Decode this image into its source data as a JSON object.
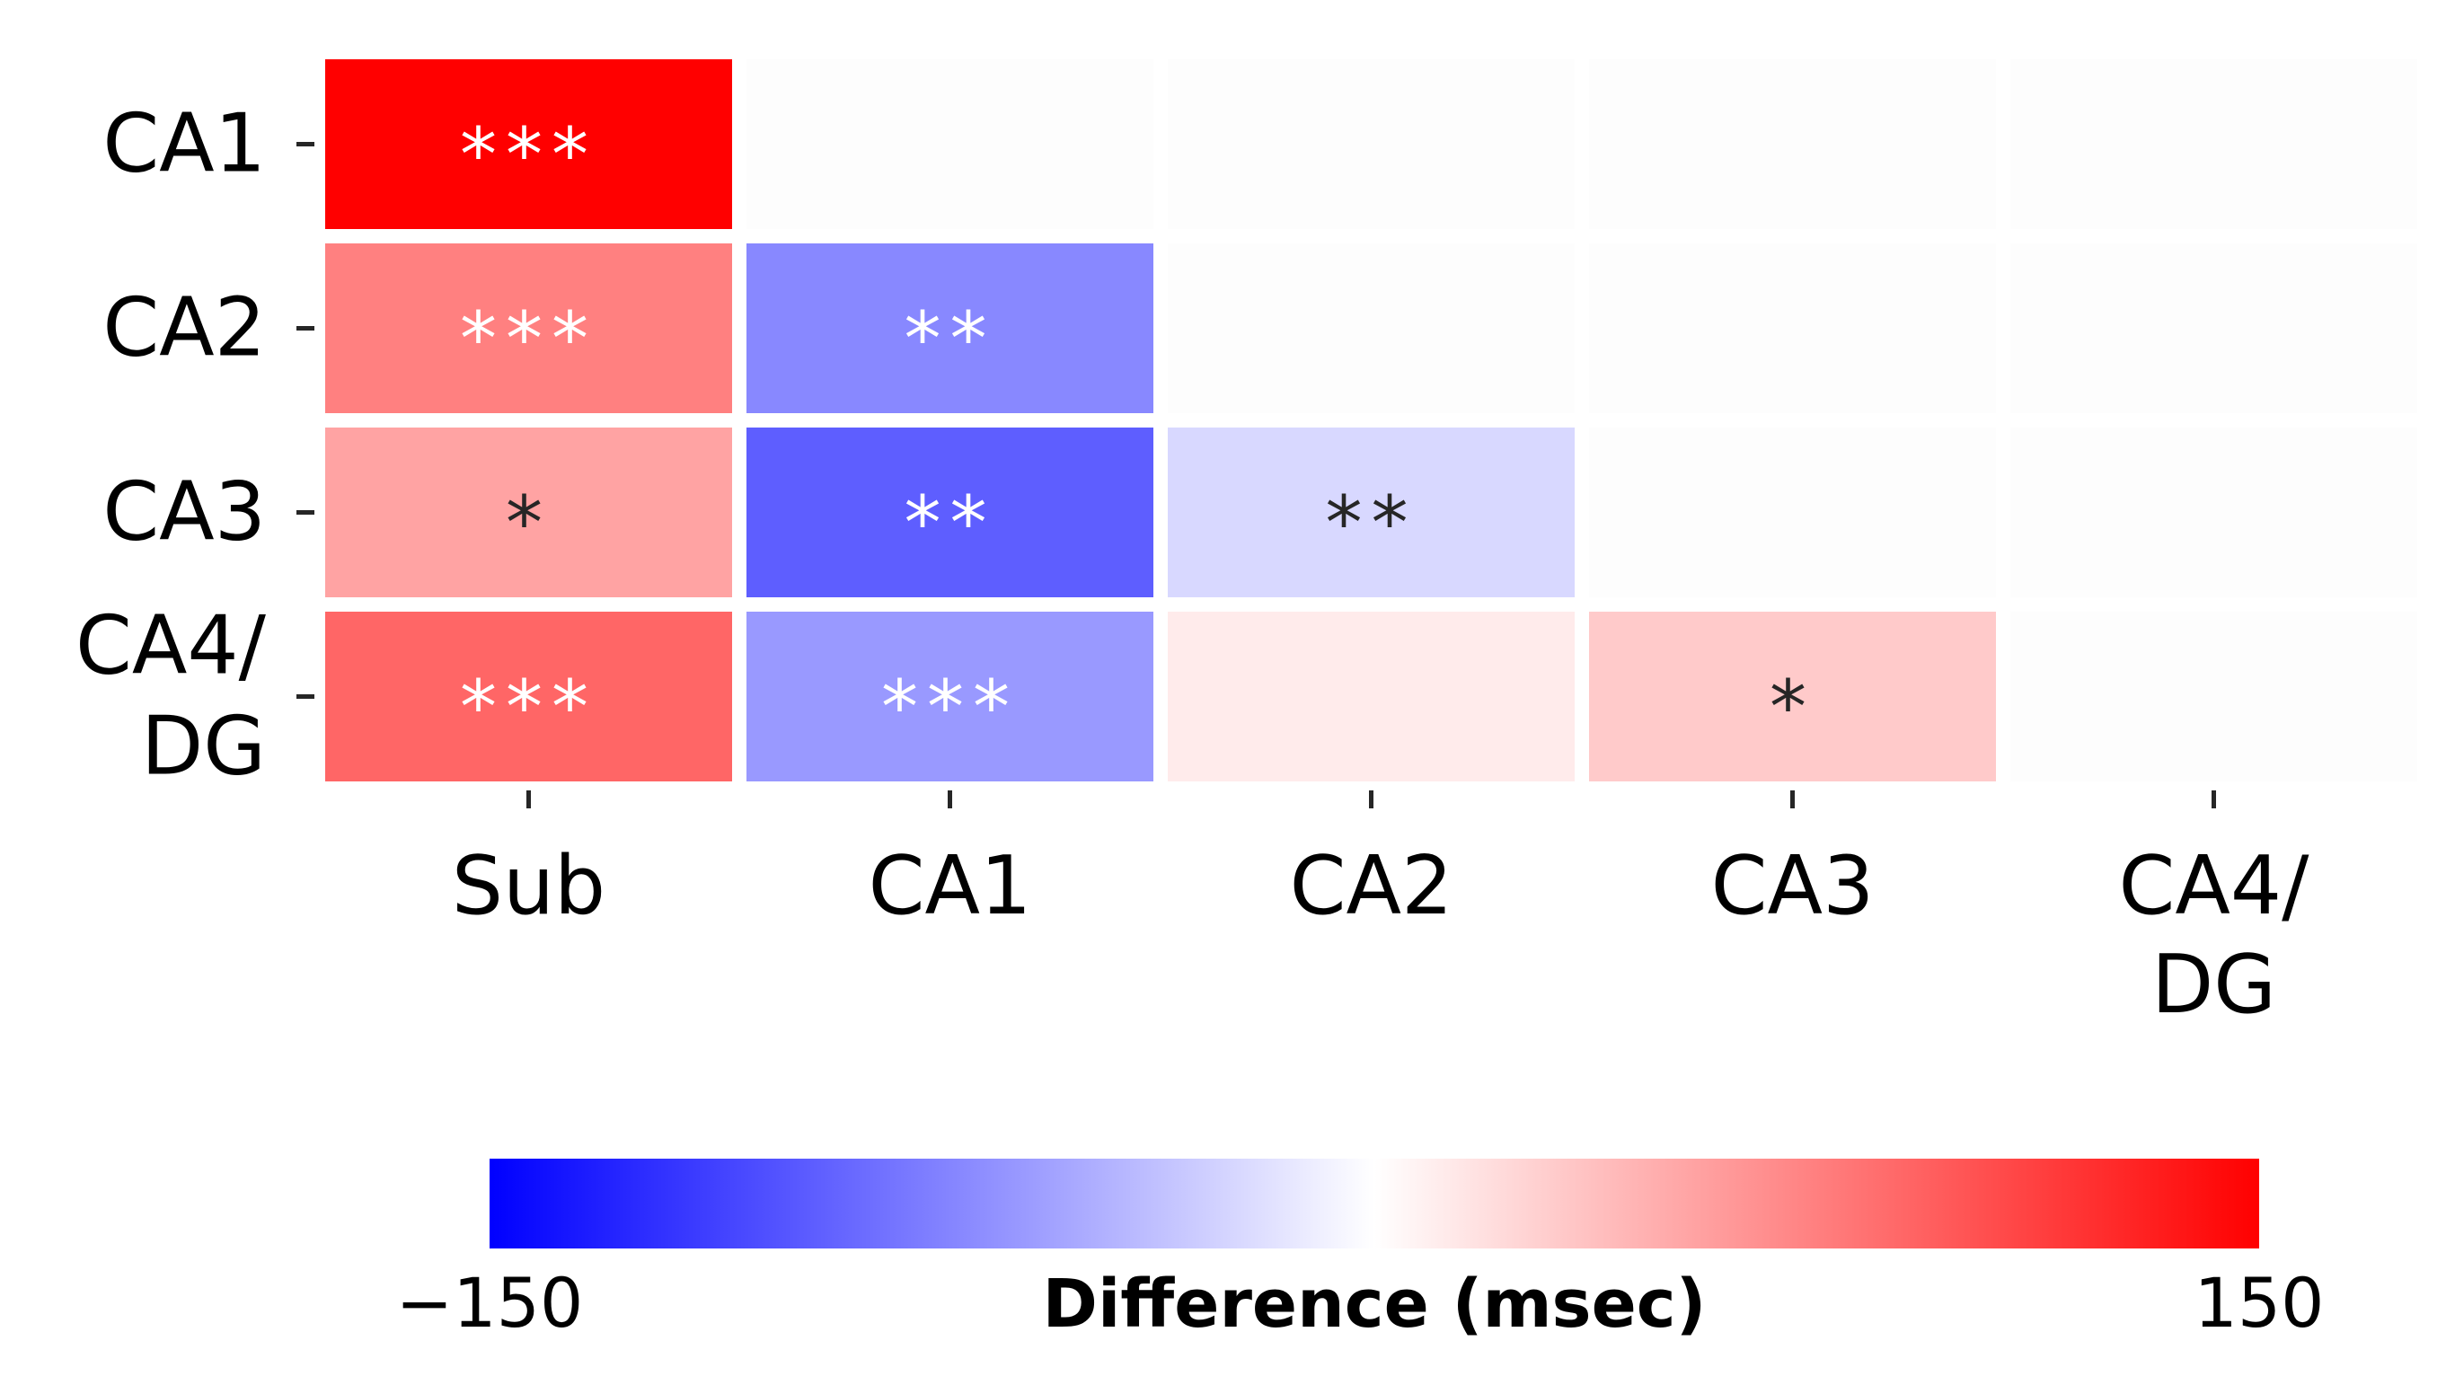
{
  "chart_data": {
    "type": "heatmap",
    "rows": [
      "CA1",
      "CA2",
      "CA3",
      "CA4/\nDG"
    ],
    "columns": [
      "Sub",
      "CA1",
      "CA2",
      "CA3",
      "CA4/\nDG"
    ],
    "values": [
      [
        150,
        null,
        null,
        null,
        null
      ],
      [
        75,
        -70,
        null,
        null,
        null
      ],
      [
        54,
        -95,
        -23,
        null,
        null
      ],
      [
        90,
        -60,
        12,
        31,
        null
      ]
    ],
    "annotations": [
      [
        "***",
        "",
        "",
        "",
        ""
      ],
      [
        "***",
        "**",
        "",
        "",
        ""
      ],
      [
        "*",
        "**",
        "**",
        "",
        ""
      ],
      [
        "***",
        "***",
        "",
        "*",
        ""
      ]
    ],
    "colormap": {
      "name": "bwr",
      "low_color": "#0000ff",
      "mid_color": "#ffffff",
      "high_color": "#ff0000"
    },
    "vmin": -150,
    "vmax": 150,
    "colorbar": {
      "label": "Difference (msec)",
      "min_label": "−150",
      "max_label": "150",
      "orientation": "horizontal",
      "placement": "bottom"
    },
    "masked_cells_color": "#fdfdfd",
    "annotation_dark_text": "#262626",
    "annotation_light_text": "#ffffff",
    "title": "",
    "xlabel": "",
    "ylabel": ""
  }
}
